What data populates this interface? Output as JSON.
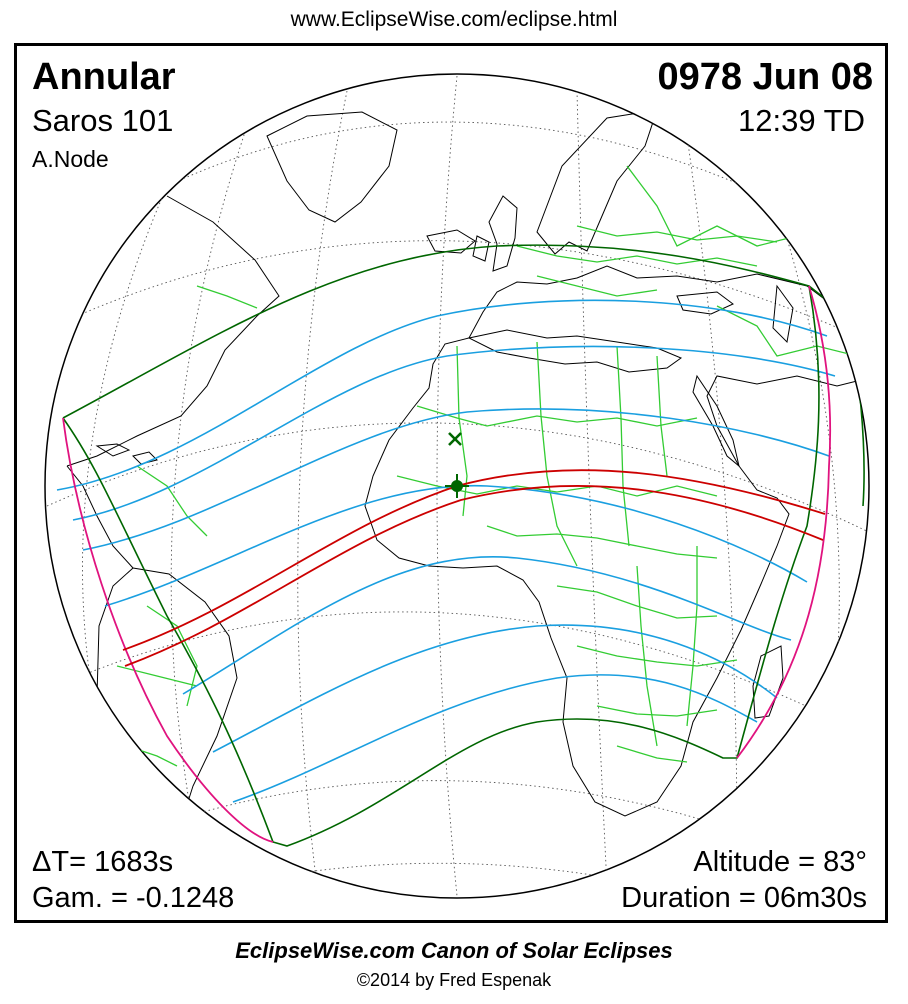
{
  "header": {
    "url": "www.EclipseWise.com/eclipse.html"
  },
  "eclipse": {
    "type": "Annular",
    "date": "0978 Jun 08",
    "saros": "Saros 101",
    "time": "12:39 TD",
    "node": "A.Node"
  },
  "stats": {
    "delta_t": "ΔT=   1683s",
    "gamma": "Gam. = -0.1248",
    "altitude": "Altitude = 83°",
    "duration": "Duration = 06m30s"
  },
  "footer": {
    "canon": "EclipseWise.com Canon of Solar Eclipses",
    "copyright": "©2014 by Fred Espenak"
  },
  "colors": {
    "penumbra_limit": "#006600",
    "central_path": "#cc0000",
    "contour": "#1a9fe0",
    "rise_set": "#e0137f",
    "land_border": "#33cc33",
    "coast": "#000000"
  },
  "markers": {
    "greatest_eclipse": "star-marker",
    "greatest_duration": "x-marker"
  }
}
